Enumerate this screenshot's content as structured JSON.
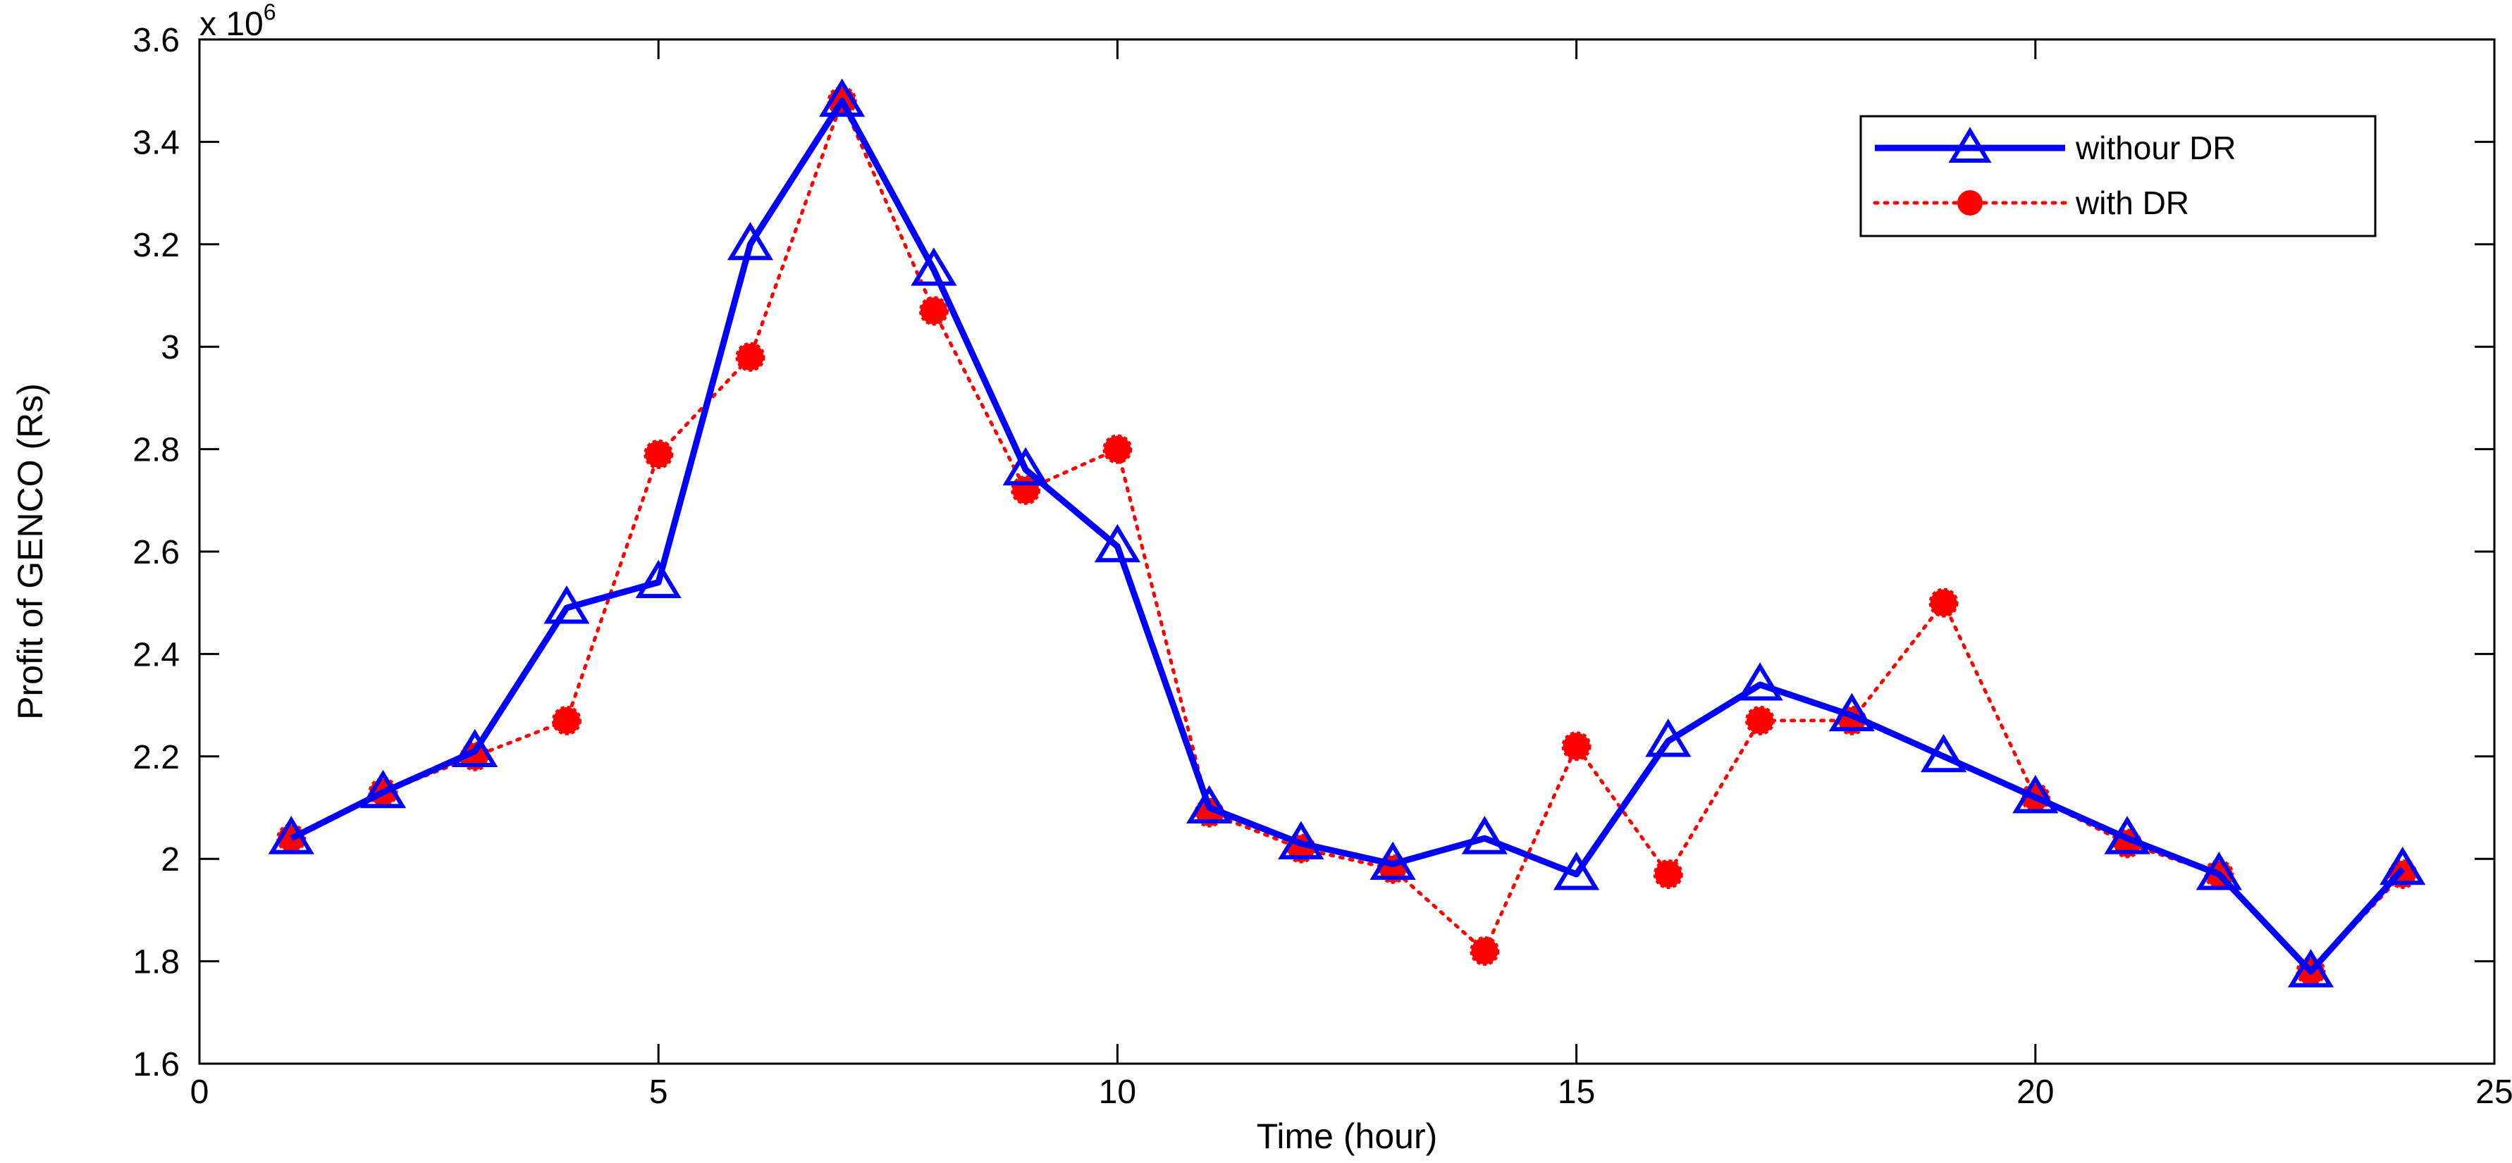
{
  "chart_data": {
    "type": "line",
    "xlabel": "Time (hour)",
    "ylabel": "Profit of GENCO (Rs)",
    "y_multiplier": "x 10",
    "y_exponent": "6",
    "xlim": [
      0,
      25
    ],
    "ylim": [
      1.6,
      3.6
    ],
    "xticks": [
      0,
      5,
      10,
      15,
      20,
      25
    ],
    "yticks": [
      1.6,
      1.8,
      2,
      2.2,
      2.4,
      2.6,
      2.8,
      3,
      3.2,
      3.4,
      3.6
    ],
    "ytick_labels": [
      "1.6",
      "1.8",
      "2",
      "2.2",
      "2.4",
      "2.6",
      "2.8",
      "3",
      "3.2",
      "3.4",
      "3.6"
    ],
    "grid": false,
    "legend_position": "top-right",
    "x": [
      1,
      2,
      3,
      4,
      5,
      6,
      7,
      8,
      9,
      10,
      11,
      12,
      13,
      14,
      15,
      16,
      17,
      18,
      19,
      20,
      21,
      22,
      23,
      24
    ],
    "series": [
      {
        "name": "withour DR",
        "color": "#0000ff",
        "line_style": "solid",
        "marker": "triangle",
        "values": [
          2.04,
          2.13,
          2.21,
          2.49,
          2.54,
          3.2,
          3.48,
          3.15,
          2.76,
          2.61,
          2.1,
          2.03,
          1.99,
          2.04,
          1.97,
          2.23,
          2.34,
          2.28,
          2.2,
          2.12,
          2.04,
          1.97,
          1.78,
          1.98
        ]
      },
      {
        "name": "with DR",
        "color": "#ff0000",
        "line_style": "dotted",
        "marker": "circle",
        "values": [
          2.04,
          2.13,
          2.2,
          2.27,
          2.79,
          2.98,
          3.48,
          3.07,
          2.72,
          2.8,
          2.09,
          2.02,
          1.98,
          1.82,
          2.22,
          1.97,
          2.27,
          2.27,
          2.5,
          2.12,
          2.03,
          1.97,
          1.78,
          1.97
        ]
      }
    ]
  }
}
